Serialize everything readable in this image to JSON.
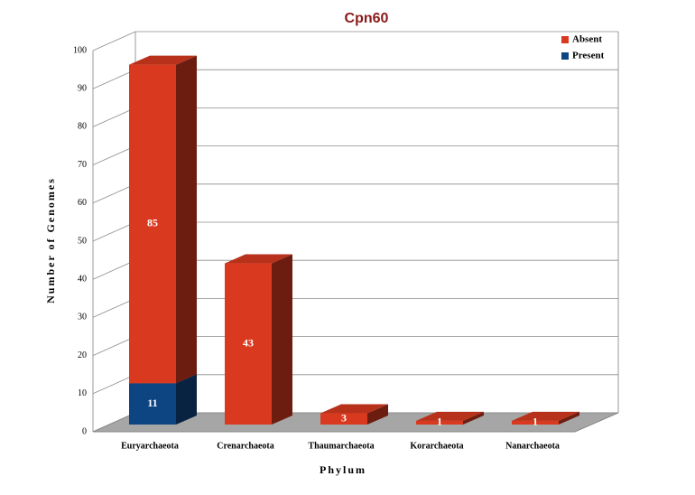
{
  "chart_data": {
    "type": "bar",
    "stacked": true,
    "title": "Cpn60",
    "x_label": "Phylum",
    "y_label": "Number of Genomes",
    "categories": [
      "Euryarchaeota",
      "Crenarchaeota",
      "Thaumarchaeota",
      "Korarchaeota",
      "Nanarchaeota"
    ],
    "series": [
      {
        "name": "Present",
        "color": "#0d4582",
        "values": [
          11,
          null,
          null,
          null,
          null
        ]
      },
      {
        "name": "Absent",
        "color": "#d93a1f",
        "values": [
          85,
          43,
          3,
          1,
          1
        ]
      }
    ],
    "ylim": [
      0,
      100
    ],
    "yticks": [
      0,
      10,
      20,
      30,
      40,
      50,
      60,
      70,
      80,
      90,
      100
    ],
    "grid": true,
    "legend": "top-right"
  }
}
